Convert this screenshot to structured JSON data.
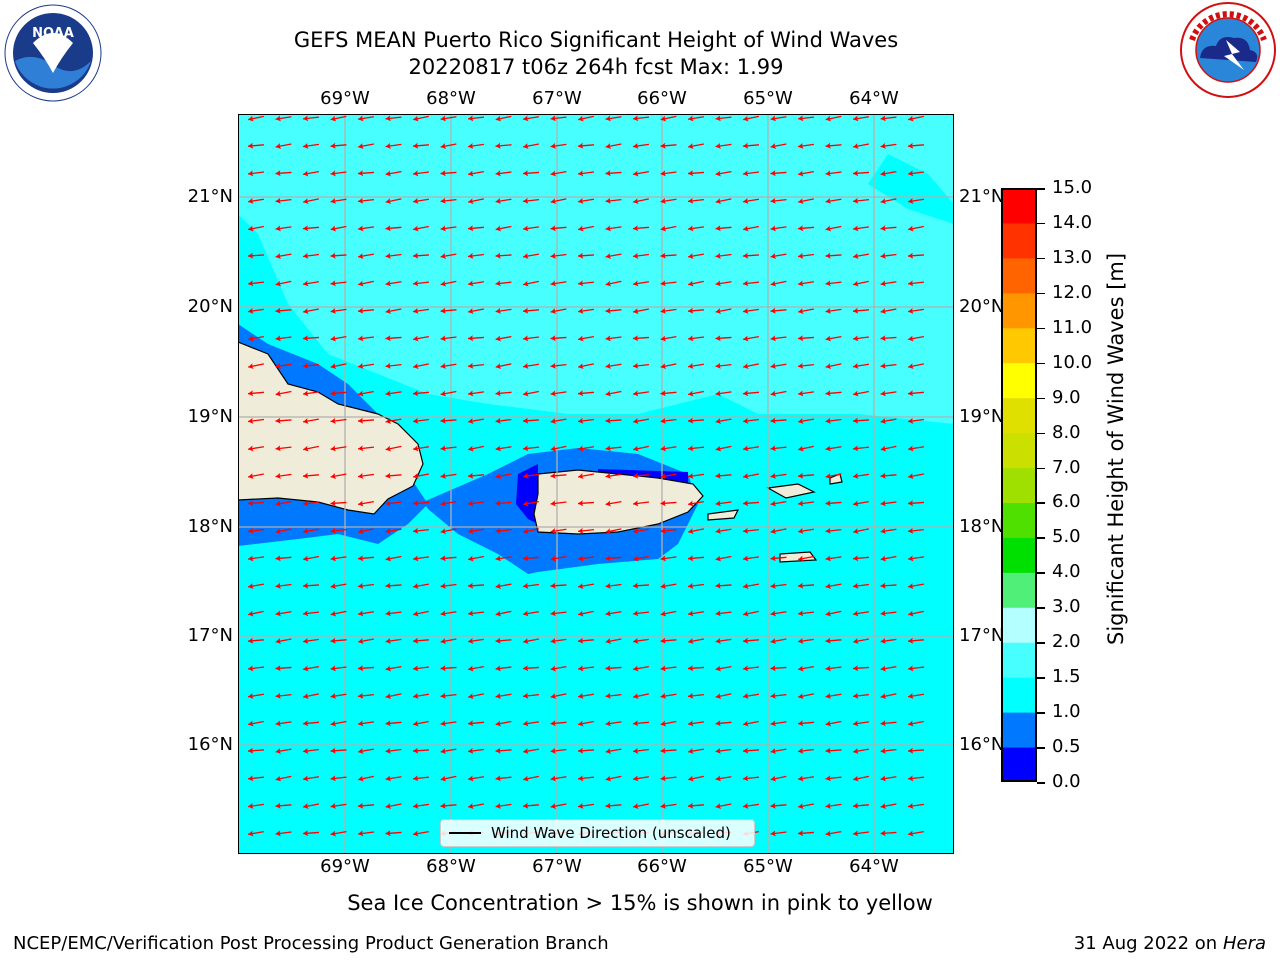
{
  "title_line1": "GEFS MEAN Puerto Rico Significant Height of Wind Waves",
  "title_line2": "20220817 t06z 264h fcst   Max: 1.99",
  "longitude_labels": [
    "69°W",
    "68°W",
    "67°W",
    "66°W",
    "65°W",
    "64°W"
  ],
  "latitude_labels": [
    "21°N",
    "20°N",
    "19°N",
    "18°N",
    "17°N",
    "16°N"
  ],
  "colorbar": {
    "label": "Significant Height of Wind Waves [m]",
    "tick_labels": [
      "0.0",
      "0.5",
      "1.0",
      "1.5",
      "2.0",
      "3.0",
      "4.0",
      "5.0",
      "6.0",
      "7.0",
      "8.0",
      "9.0",
      "10.0",
      "11.0",
      "12.0",
      "13.0",
      "14.0",
      "15.0"
    ],
    "colors": [
      "#0000ff",
      "#0078ff",
      "#00ffff",
      "#48ffff",
      "#b4ffff",
      "#50f078",
      "#00e000",
      "#50e000",
      "#a0e000",
      "#cce000",
      "#e0e000",
      "#ffff00",
      "#ffc800",
      "#ff9600",
      "#ff6400",
      "#ff3200",
      "#ff0000"
    ]
  },
  "legend_label": "Wind Wave Direction (unscaled)",
  "footnote": "Sea Ice Concentration > 15% is shown in pink to yellow",
  "credit_left": "NCEP/EMC/Verification Post Processing Product Generation Branch",
  "credit_date": "31 Aug 2022 on",
  "credit_machine": "Hera",
  "map_colors": {
    "ocean_low": "#00ffff",
    "ocean_mid": "#48ffff",
    "coastal": "#0078ff",
    "deep_blue": "#0000ff",
    "land": "#efedd9",
    "arrow": "#ff0000",
    "grid": "#b0b0b0"
  },
  "logos": [
    "noaa-logo",
    "national-weather-service-logo"
  ]
}
